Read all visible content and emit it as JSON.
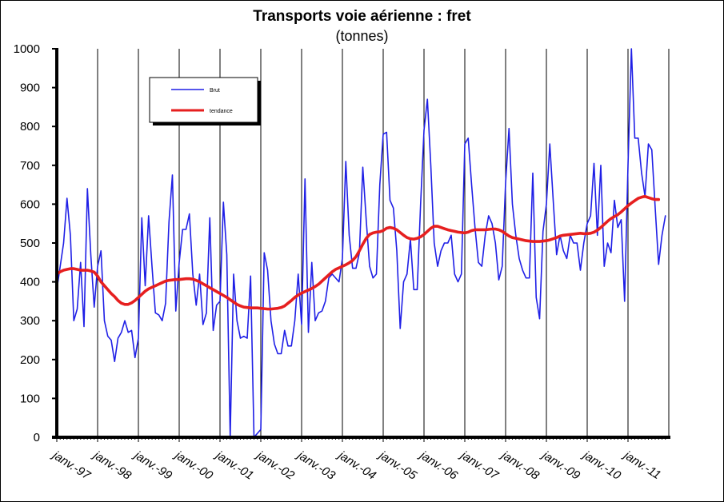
{
  "chart_data": {
    "type": "line",
    "title": "Transports voie aérienne : fret",
    "subtitle": "(tonnes)",
    "ylim": [
      0,
      1000
    ],
    "yticks": [
      0,
      100,
      200,
      300,
      400,
      500,
      600,
      700,
      800,
      900,
      1000
    ],
    "xticks": [
      "janv.-97",
      "janv.-98",
      "janv.-99",
      "janv.-00",
      "janv.-01",
      "janv.-02",
      "janv.-03",
      "janv.-04",
      "janv.-05",
      "janv.-06",
      "janv.-07",
      "janv.-08",
      "janv.-09",
      "janv.-10",
      "janv.-11"
    ],
    "x_start": "1997-01",
    "grid": "vertical",
    "legend_position": "top-left",
    "series": [
      {
        "name": "Brut",
        "color": "#1f1fe6",
        "values": [
          380,
          440,
          500,
          615,
          520,
          300,
          330,
          450,
          285,
          640,
          470,
          335,
          440,
          480,
          300,
          260,
          250,
          195,
          255,
          270,
          300,
          270,
          275,
          205,
          255,
          565,
          390,
          570,
          440,
          320,
          315,
          300,
          345,
          555,
          675,
          325,
          450,
          535,
          535,
          575,
          420,
          340,
          420,
          290,
          320,
          565,
          275,
          340,
          350,
          605,
          470,
          0,
          420,
          300,
          255,
          260,
          255,
          415,
          0,
          10,
          20,
          475,
          430,
          300,
          240,
          215,
          215,
          275,
          235,
          235,
          300,
          420,
          290,
          665,
          270,
          450,
          300,
          320,
          325,
          350,
          410,
          420,
          410,
          400,
          460,
          710,
          520,
          435,
          435,
          475,
          695,
          560,
          440,
          410,
          420,
          650,
          780,
          785,
          610,
          590,
          480,
          280,
          400,
          420,
          510,
          380,
          380,
          600,
          790,
          870,
          700,
          500,
          440,
          480,
          500,
          500,
          520,
          420,
          400,
          420,
          755,
          770,
          650,
          540,
          450,
          440,
          520,
          570,
          550,
          500,
          405,
          440,
          655,
          795,
          600,
          520,
          460,
          430,
          410,
          410,
          680,
          360,
          305,
          530,
          600,
          755,
          610,
          470,
          520,
          480,
          460,
          520,
          500,
          500,
          430,
          500,
          550,
          570,
          705,
          520,
          700,
          440,
          500,
          475,
          610,
          540,
          560,
          350,
          700,
          1000,
          770,
          770,
          680,
          620,
          755,
          740,
          590,
          445,
          520,
          570
        ]
      },
      {
        "name": "tendance",
        "color": "#e61f1f",
        "values": [
          420,
          426,
          430,
          432,
          434,
          434,
          432,
          430,
          430,
          430,
          428,
          425,
          415,
          400,
          390,
          380,
          370,
          362,
          352,
          345,
          342,
          342,
          346,
          352,
          360,
          368,
          376,
          382,
          386,
          390,
          394,
          398,
          402,
          404,
          405,
          406,
          406,
          407,
          408,
          408,
          407,
          404,
          400,
          395,
          390,
          385,
          380,
          375,
          370,
          365,
          360,
          354,
          348,
          342,
          338,
          335,
          334,
          333,
          333,
          333,
          332,
          331,
          330,
          330,
          331,
          332,
          334,
          338,
          345,
          352,
          360,
          366,
          371,
          375,
          379,
          383,
          388,
          394,
          402,
          410,
          418,
          426,
          432,
          436,
          440,
          444,
          449,
          455,
          465,
          480,
          497,
          512,
          522,
          526,
          528,
          529,
          532,
          538,
          540,
          538,
          534,
          527,
          520,
          514,
          511,
          510,
          512,
          516,
          522,
          530,
          538,
          543,
          543,
          540,
          537,
          534,
          532,
          530,
          528,
          527,
          526,
          528,
          532,
          534,
          534,
          534,
          534,
          535,
          536,
          536,
          534,
          530,
          524,
          518,
          514,
          512,
          510,
          508,
          506,
          505,
          504,
          504,
          504,
          505,
          506,
          508,
          511,
          514,
          518,
          520,
          521,
          522,
          523,
          524,
          525,
          524,
          524,
          525,
          528,
          533,
          540,
          548,
          556,
          563,
          568,
          573,
          580,
          588,
          596,
          603,
          609,
          615,
          618,
          620,
          617,
          614,
          612,
          612
        ]
      }
    ]
  }
}
